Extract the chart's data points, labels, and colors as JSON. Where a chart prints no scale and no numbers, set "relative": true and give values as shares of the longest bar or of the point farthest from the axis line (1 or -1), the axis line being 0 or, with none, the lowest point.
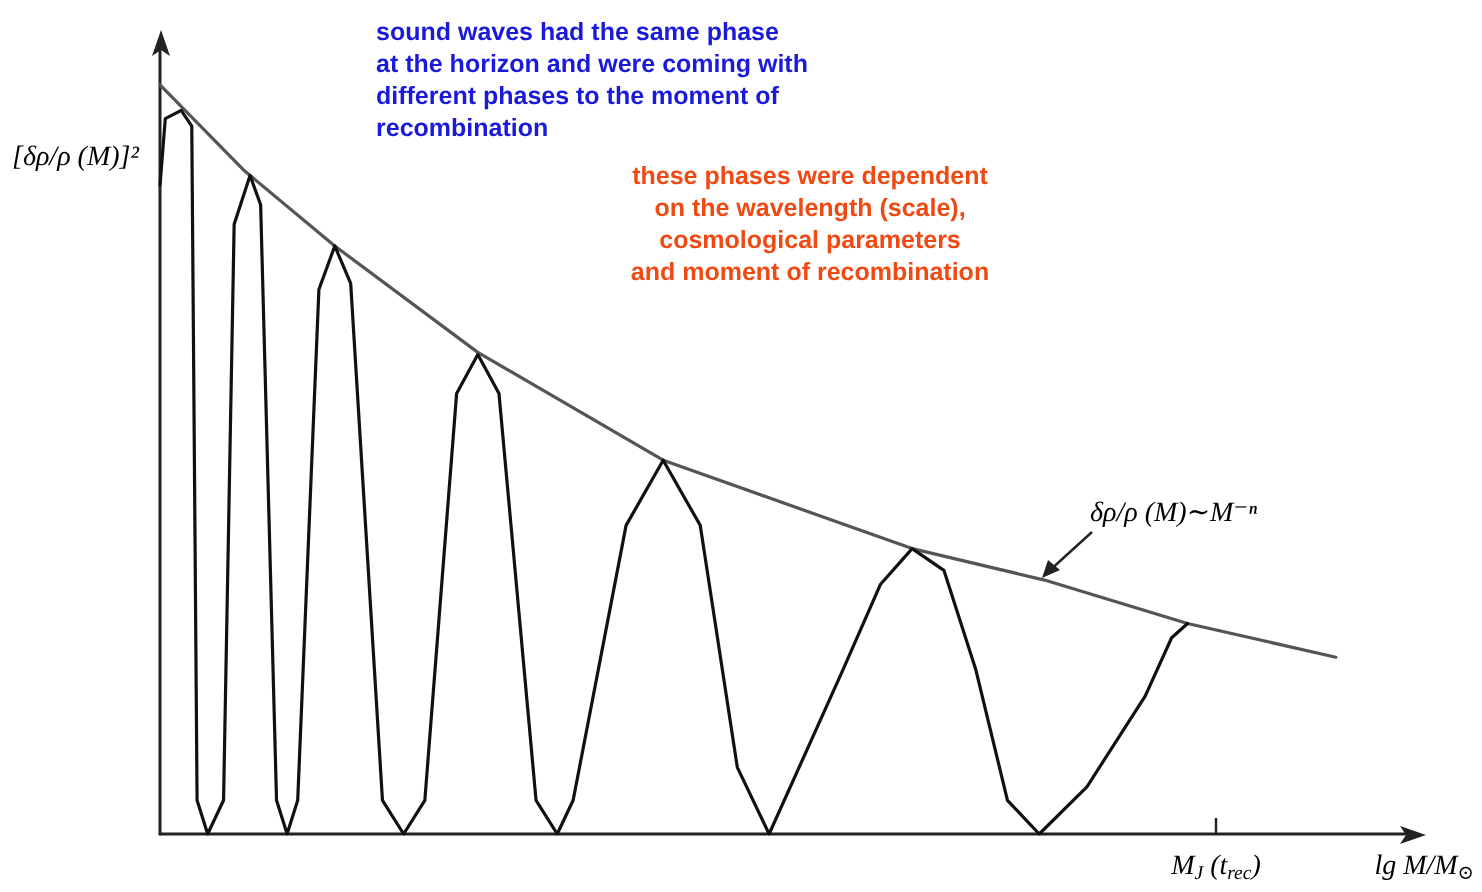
{
  "chart_data": {
    "type": "line",
    "relative": true,
    "ylabel": "[δρ/ρ (M)]²",
    "xlabel": "lg M/M$_{⊙}$",
    "grid": false,
    "marker": "none",
    "categories": [
      null,
      null,
      null,
      null,
      null,
      null,
      null,
      null,
      null,
      null,
      null,
      null,
      null,
      null,
      null,
      null,
      null,
      null,
      null,
      null,
      null,
      null,
      null,
      null,
      null,
      null,
      null,
      null,
      null,
      null,
      null,
      null,
      null,
      null,
      null,
      null,
      null,
      null,
      null,
      null,
      null,
      null,
      null,
      null,
      null,
      null,
      null,
      null,
      null,
      null,
      null,
      null,
      null,
      null,
      null,
      null,
      null,
      null,
      null,
      null,
      null,
      null,
      null,
      null,
      null,
      null,
      null,
      null,
      null,
      null,
      null,
      null,
      null,
      null,
      null,
      null,
      null,
      null,
      null,
      null,
      null,
      null,
      null,
      null,
      null,
      null,
      null,
      null,
      null,
      null,
      null,
      null,
      null,
      null,
      null,
      null,
      null,
      null,
      null,
      null,
      null,
      null,
      null,
      null,
      null,
      null,
      null,
      null,
      null,
      null,
      null,
      null,
      null,
      null,
      null,
      null,
      null,
      null,
      null,
      null,
      null,
      null,
      null,
      null,
      null,
      null,
      null,
      null,
      null,
      null,
      null,
      null,
      null,
      null,
      null,
      null,
      null,
      null,
      null,
      null,
      null,
      null,
      null,
      null,
      null,
      null,
      null,
      null,
      null,
      null,
      null,
      null,
      null,
      null,
      null,
      null,
      null,
      null,
      null,
      null,
      null,
      null,
      null,
      null,
      null,
      null,
      null,
      null,
      null,
      null,
      null,
      null,
      null,
      null,
      null,
      null,
      null,
      null,
      null,
      null,
      null,
      null,
      null,
      null,
      null,
      null,
      null,
      null,
      null,
      null,
      null,
      null,
      null,
      null,
      null,
      null,
      null,
      null,
      null,
      null,
      null,
      null,
      null,
      null,
      null,
      null,
      null,
      null,
      null,
      null,
      null,
      null,
      null,
      null,
      null,
      null,
      null,
      null,
      null,
      null,
      null,
      null,
      null,
      null,
      null,
      null,
      null,
      null,
      null,
      null,
      null,
      null,
      null,
      null,
      null,
      null,
      null
    ],
    "series": [
      {
        "color": "#555555",
        "values": [
          1.0,
          null,
          null,
          null,
          null,
          null,
          null,
          null,
          null,
          null,
          null,
          null,
          null,
          null,
          null,
          null,
          0.885,
          null,
          null,
          null,
          null,
          null,
          null,
          null,
          null,
          null,
          null,
          null,
          null,
          null,
          null,
          null,
          null,
          0.785,
          null,
          null,
          null,
          null,
          null,
          null,
          null,
          null,
          null,
          null,
          null,
          null,
          null,
          null,
          null,
          null,
          null,
          null,
          null,
          null,
          null,
          null,
          null,
          null,
          null,
          null,
          0.643,
          null,
          null,
          null,
          null,
          null,
          null,
          null,
          null,
          null,
          null,
          null,
          null,
          null,
          null,
          null,
          null,
          null,
          null,
          null,
          null,
          null,
          null,
          null,
          null,
          null,
          null,
          null,
          null,
          null,
          null,
          null,
          null,
          null,
          null,
          0.499,
          null,
          null,
          null,
          null,
          null,
          null,
          null,
          null,
          null,
          null,
          null,
          null,
          null,
          null,
          null,
          null,
          null,
          null,
          null,
          null,
          null,
          null,
          null,
          null,
          null,
          null,
          null,
          null,
          null,
          null,
          null,
          null,
          null,
          null,
          null,
          null,
          null,
          null,
          null,
          null,
          null,
          null,
          null,
          null,
          null,
          null,
          0.381,
          null,
          null,
          null,
          null,
          null,
          null,
          null,
          null,
          null,
          null,
          null,
          null,
          null,
          null,
          null,
          null,
          null,
          null,
          null,
          null,
          null,
          null,
          null,
          null,
          0.339,
          null,
          null,
          null,
          null,
          null,
          null,
          null,
          null,
          null,
          null,
          null,
          null,
          null,
          null,
          null,
          null,
          null,
          null,
          null,
          null,
          null,
          null,
          null,
          null,
          null,
          null,
          0.281,
          null,
          null,
          null,
          null,
          null,
          null,
          null,
          null,
          null,
          null,
          null,
          null,
          null,
          null,
          null,
          null,
          null,
          null,
          null,
          null,
          null,
          null,
          null,
          null,
          null,
          null,
          null,
          0.236,
          null,
          null,
          null,
          null,
          null,
          null,
          null,
          null,
          null,
          null,
          null,
          null,
          null,
          null
        ]
      },
      {
        "color": "#111111",
        "values": [
          0.866,
          0.955,
          null,
          null,
          0.966,
          null,
          0.945,
          0.045,
          null,
          0,
          null,
          null,
          0.045,
          null,
          0.814,
          null,
          null,
          0.879,
          null,
          0.84,
          null,
          null,
          0.045,
          null,
          0,
          null,
          0.045,
          null,
          null,
          null,
          0.727,
          null,
          null,
          0.785,
          null,
          null,
          0.735,
          null,
          null,
          null,
          null,
          null,
          0.045,
          null,
          null,
          null,
          0,
          null,
          null,
          null,
          0.045,
          null,
          null,
          null,
          null,
          null,
          0.588,
          null,
          null,
          null,
          0.64,
          null,
          null,
          null,
          0.588,
          null,
          null,
          null,
          null,
          null,
          null,
          0.045,
          null,
          null,
          null,
          0,
          null,
          null,
          0.045,
          null,
          null,
          null,
          null,
          null,
          null,
          null,
          null,
          null,
          0.412,
          null,
          null,
          null,
          null,
          null,
          null,
          0.499,
          null,
          null,
          null,
          null,
          null,
          null,
          0.412,
          null,
          null,
          null,
          null,
          null,
          null,
          0.089,
          null,
          null,
          null,
          null,
          null,
          0,
          null,
          null,
          null,
          null,
          null,
          null,
          null,
          null,
          null,
          null,
          null,
          null,
          null,
          0.22,
          null,
          null,
          null,
          null,
          null,
          null,
          0.333,
          null,
          null,
          null,
          null,
          null,
          0.381,
          null,
          null,
          null,
          null,
          null,
          0.352,
          null,
          null,
          null,
          null,
          null,
          0.22,
          null,
          null,
          null,
          null,
          null,
          0.045,
          null,
          null,
          null,
          null,
          null,
          0,
          null,
          null,
          null,
          null,
          null,
          null,
          null,
          null,
          0.063,
          null,
          null,
          null,
          null,
          null,
          null,
          null,
          null,
          null,
          null,
          0.184,
          null,
          null,
          null,
          null,
          0.262,
          null,
          null,
          0.281,
          null,
          null,
          null,
          null,
          null,
          null,
          null,
          null,
          null,
          null,
          null,
          null,
          null,
          null,
          null,
          null,
          null,
          null,
          null,
          null,
          null,
          null,
          null,
          null,
          null,
          null,
          null,
          null,
          null,
          null,
          null,
          null,
          null,
          null,
          null,
          null,
          null,
          null,
          null,
          null,
          null,
          null
        ]
      }
    ],
    "annotations": [
      "sound waves had the same phase\nat the horizon and were coming with\ndifferent phases to the moment of\nrecombination",
      "these phases were dependent\non the wavelength (scale),\ncosmological parameters\nand moment of recombination",
      "δρ/ρ (M)∼M⁻ⁿ",
      "M$_{J}$ (t$_{rec}$)"
    ]
  }
}
